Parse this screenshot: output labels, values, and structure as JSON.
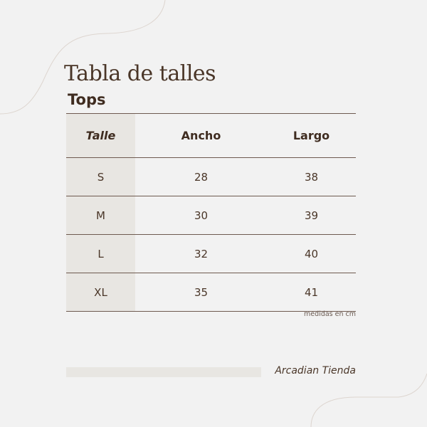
{
  "title": "Tabla de talles",
  "subtitle": "Tops",
  "table": {
    "headers": [
      "Talle",
      "Ancho",
      "Largo"
    ],
    "rows": [
      [
        "S",
        "28",
        "38"
      ],
      [
        "M",
        "30",
        "39"
      ],
      [
        "L",
        "32",
        "40"
      ],
      [
        "XL",
        "35",
        "41"
      ]
    ]
  },
  "note": "medidas en cm",
  "brand": "Arcadian Tienda",
  "colors": {
    "background": "#f2f2f2",
    "text": "#4a3628",
    "shade": "#e8e6e2",
    "line": "#6e5a50"
  }
}
